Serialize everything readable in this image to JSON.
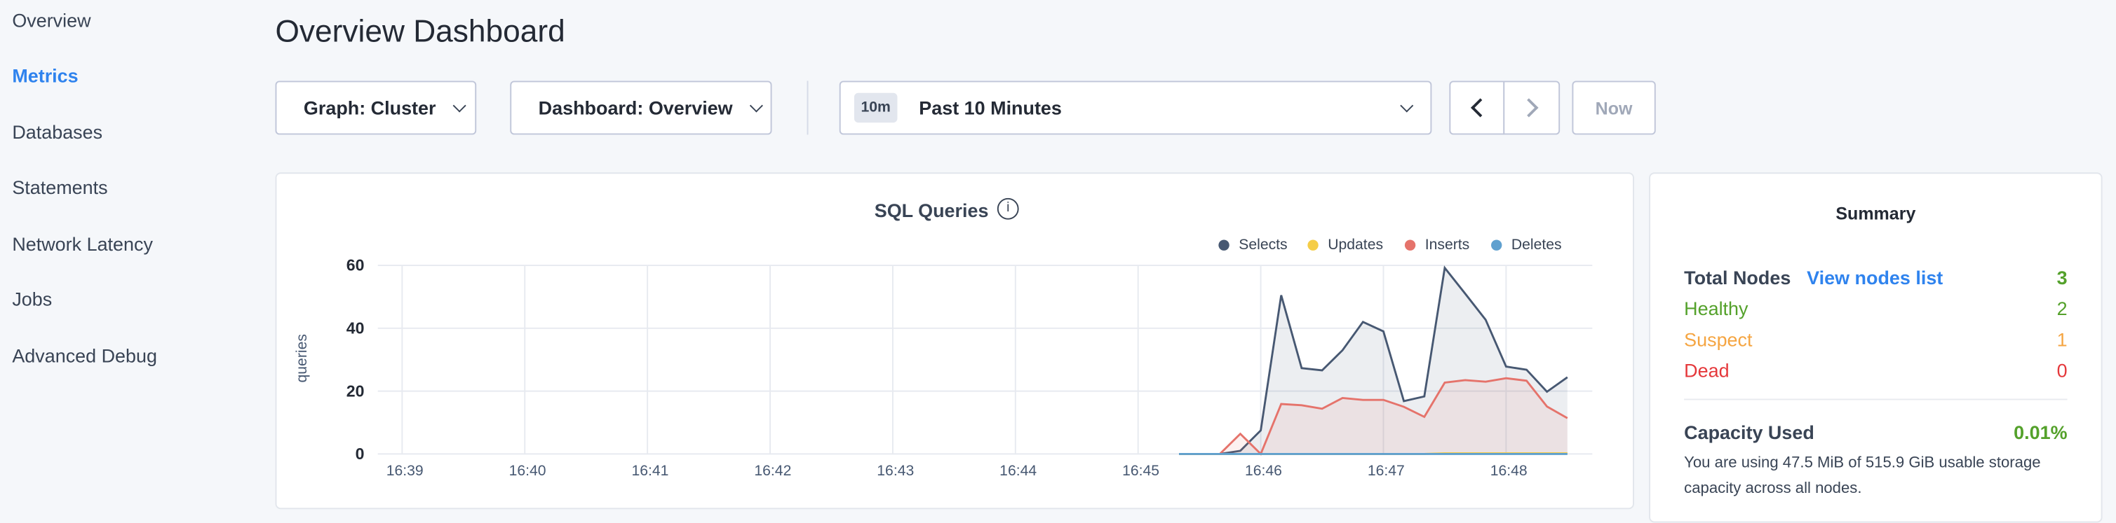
{
  "sidebar": {
    "items": [
      {
        "label": "Overview"
      },
      {
        "label": "Metrics",
        "active": true
      },
      {
        "label": "Databases"
      },
      {
        "label": "Statements"
      },
      {
        "label": "Network Latency"
      },
      {
        "label": "Jobs"
      },
      {
        "label": "Advanced Debug"
      }
    ]
  },
  "header": {
    "title": "Overview Dashboard"
  },
  "toolbar": {
    "graph": "Graph: Cluster",
    "dashboard": "Dashboard: Overview",
    "time_badge": "10m",
    "time_range": "Past 10 Minutes",
    "now": "Now"
  },
  "summary": {
    "title": "Summary",
    "total_nodes_label": "Total Nodes",
    "view_nodes_link": "View nodes list",
    "total_nodes": "3",
    "healthy_label": "Healthy",
    "healthy": "2",
    "suspect_label": "Suspect",
    "suspect": "1",
    "dead_label": "Dead",
    "dead": "0",
    "capacity_label": "Capacity Used",
    "capacity_value": "0.01%",
    "capacity_text_1": "You are using 47.5 MiB of 515.9 GiB usable storage",
    "capacity_text_2": "capacity across all nodes.",
    "colors": {
      "healthy": "#54a12b",
      "suspect": "#f5a542",
      "dead": "#e5383b",
      "link": "#2f83ee"
    }
  },
  "chart_data": {
    "type": "area",
    "title": "SQL Queries",
    "ylabel": "queries",
    "xlabel": "",
    "ylim": [
      0,
      60
    ],
    "yticks": [
      "0",
      "20",
      "40",
      "60"
    ],
    "xticks": [
      "16:39",
      "16:40",
      "16:41",
      "16:42",
      "16:43",
      "16:44",
      "16:45",
      "16:46",
      "16:47",
      "16:48"
    ],
    "legend_position": "top-right",
    "grid": true,
    "x": [
      "16:45:20",
      "16:45:30",
      "16:45:40",
      "16:45:50",
      "16:46:00",
      "16:46:10",
      "16:46:20",
      "16:46:30",
      "16:46:40",
      "16:46:50",
      "16:47:00",
      "16:47:10",
      "16:47:20",
      "16:47:30",
      "16:47:40",
      "16:47:50",
      "16:48:00",
      "16:48:10",
      "16:48:20",
      "16:48:30"
    ],
    "series": [
      {
        "name": "Selects",
        "color": "#475872",
        "values": [
          0,
          0,
          0,
          1,
          7.5,
          50.5,
          27.3,
          26.6,
          33,
          42,
          39,
          16.8,
          18.3,
          59.2,
          51,
          42.7,
          27.8,
          26.8,
          19.8,
          24.4
        ]
      },
      {
        "name": "Updates",
        "color": "#f5cd47",
        "values": [
          0,
          0,
          0,
          0,
          0,
          0,
          0,
          0,
          0,
          0,
          0,
          0,
          0,
          0.2,
          0.2,
          0.2,
          0.2,
          0.2,
          0.2,
          0.2
        ]
      },
      {
        "name": "Inserts",
        "color": "#e5736b",
        "values": [
          0,
          0,
          0,
          6.4,
          0,
          15.9,
          15.5,
          14.4,
          17.8,
          17.2,
          17.2,
          15,
          11.8,
          22.7,
          23.5,
          23,
          24.1,
          23.3,
          15.1,
          11.4
        ]
      },
      {
        "name": "Deletes",
        "color": "#5fa0cf",
        "values": [
          0,
          0,
          0,
          0,
          0,
          0,
          0,
          0,
          0,
          0,
          0,
          0,
          0,
          0,
          0,
          0,
          0,
          0,
          0,
          0
        ]
      }
    ]
  }
}
